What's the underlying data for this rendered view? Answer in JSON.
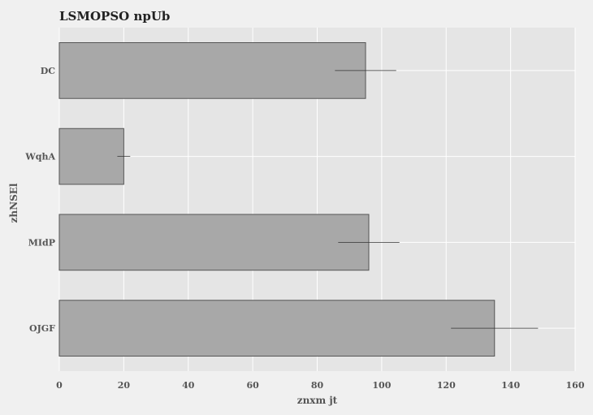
{
  "chart_data": {
    "type": "bar",
    "orientation": "horizontal",
    "title": "LSMOPSO npUb",
    "xlabel": "znxm jt",
    "ylabel": "zhNSEl",
    "categories": [
      "DC",
      "WqhA",
      "MIdP",
      "OJGF"
    ],
    "values": [
      95,
      20,
      96,
      135
    ],
    "errors": [
      9.5,
      2,
      9.5,
      13.5
    ],
    "xlim": [
      0,
      160
    ],
    "xticks": [
      0,
      20,
      40,
      60,
      80,
      100,
      120,
      140,
      160
    ],
    "grid": true,
    "legend": "none",
    "colors": {
      "background": "#f0f0f0",
      "plot_background": "#e5e5e5",
      "bar_fill": "#a8a8a8",
      "bar_edge": "#555555",
      "grid": "#ffffff",
      "error_bar": "#333333"
    }
  }
}
